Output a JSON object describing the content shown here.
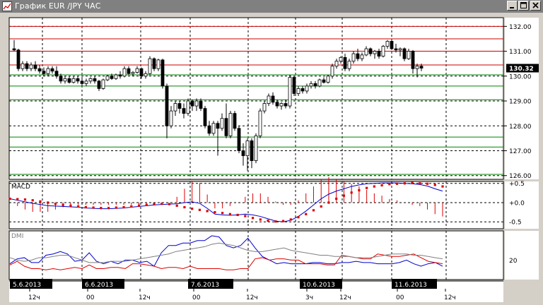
{
  "window": {
    "title": "График EUR /JPY ЧАС"
  },
  "colors": {
    "bg": "#ffffff",
    "up": "#ffffff",
    "down": "#000000",
    "res": "#cc0000",
    "sup": "#008000",
    "macd": "#0000cc",
    "signal": "#dd0000",
    "diplus": "#0000cc",
    "diminus": "#dd0000",
    "adx": "#808080"
  },
  "chart_data": [
    {
      "type": "candlestick",
      "title": "",
      "y_ticks": [
        "132.00",
        "131.00",
        "130.00",
        "129.00",
        "128.00",
        "127.00",
        "126.00"
      ],
      "ylim": [
        125.85,
        132.35
      ],
      "current_price": "130.32",
      "resistance_levels": [
        132.0,
        131.5,
        131.0,
        130.45
      ],
      "support_levels": [
        130.05,
        129.6,
        129.05,
        127.55,
        127.15,
        126.05
      ],
      "x_labels": [
        "5.6.2013",
        "12ч",
        "6.6.2013",
        "00",
        "12ч",
        "7.6.2013",
        "00",
        "12ч",
        "10.6.2013",
        "3ч",
        "12ч",
        "11.6.2013",
        "00",
        "12ч"
      ],
      "date_badges": [
        "5.6.2013",
        "6.6.2013",
        "7.6.2013",
        "10.6.2013",
        "11.6.2013"
      ],
      "candles": [
        [
          131.1,
          131.45,
          131.0,
          131.05
        ],
        [
          131.05,
          131.1,
          130.2,
          130.3
        ],
        [
          130.3,
          130.6,
          130.2,
          130.5
        ],
        [
          130.5,
          130.6,
          130.2,
          130.3
        ],
        [
          130.3,
          130.55,
          130.2,
          130.45
        ],
        [
          130.45,
          130.6,
          130.2,
          130.3
        ],
        [
          130.3,
          130.45,
          130.1,
          130.2
        ],
        [
          130.2,
          130.35,
          130.0,
          130.1
        ],
        [
          130.1,
          130.4,
          130.0,
          130.3
        ],
        [
          130.3,
          130.4,
          130.1,
          130.2
        ],
        [
          130.2,
          130.4,
          129.9,
          130.0
        ],
        [
          130.0,
          130.1,
          129.7,
          129.8
        ],
        [
          129.8,
          130.0,
          129.7,
          129.9
        ],
        [
          129.9,
          130.0,
          129.7,
          129.75
        ],
        [
          129.75,
          130.0,
          129.7,
          129.9
        ],
        [
          129.9,
          130.0,
          129.7,
          129.8
        ],
        [
          129.8,
          129.9,
          129.6,
          129.7
        ],
        [
          129.7,
          129.9,
          129.6,
          129.8
        ],
        [
          129.8,
          129.95,
          129.7,
          129.9
        ],
        [
          129.9,
          130.0,
          129.7,
          129.8
        ],
        [
          129.8,
          129.85,
          129.4,
          129.5
        ],
        [
          129.5,
          129.9,
          129.45,
          129.85
        ],
        [
          129.85,
          130.05,
          129.8,
          130.0
        ],
        [
          130.0,
          130.1,
          129.85,
          129.9
        ],
        [
          129.9,
          130.1,
          129.85,
          130.05
        ],
        [
          130.05,
          130.2,
          129.9,
          130.0
        ],
        [
          130.0,
          130.4,
          129.95,
          130.3
        ],
        [
          130.3,
          130.4,
          130.05,
          130.1
        ],
        [
          130.1,
          130.2,
          130.0,
          130.15
        ],
        [
          130.15,
          130.4,
          130.1,
          130.3
        ],
        [
          130.3,
          130.35,
          129.9,
          130.0
        ],
        [
          130.0,
          130.2,
          129.9,
          130.1
        ],
        [
          130.1,
          130.8,
          130.05,
          130.7
        ],
        [
          130.7,
          130.75,
          130.2,
          130.3
        ],
        [
          130.3,
          130.7,
          130.2,
          130.65
        ],
        [
          130.65,
          130.7,
          129.5,
          129.6
        ],
        [
          129.6,
          129.7,
          127.5,
          128.0
        ],
        [
          128.0,
          128.8,
          127.9,
          128.6
        ],
        [
          128.6,
          129.0,
          128.4,
          128.9
        ],
        [
          128.9,
          129.0,
          128.5,
          128.7
        ],
        [
          128.7,
          128.9,
          128.3,
          128.5
        ],
        [
          128.5,
          129.1,
          128.4,
          129.0
        ],
        [
          129.0,
          129.05,
          128.6,
          128.8
        ],
        [
          128.8,
          129.1,
          128.6,
          129.0
        ],
        [
          129.0,
          129.1,
          128.6,
          128.7
        ],
        [
          128.7,
          128.8,
          127.9,
          128.0
        ],
        [
          128.0,
          128.2,
          127.6,
          127.7
        ],
        [
          127.7,
          128.2,
          127.6,
          128.1
        ],
        [
          128.1,
          128.2,
          126.8,
          127.9
        ],
        [
          127.9,
          128.5,
          127.8,
          128.3
        ],
        [
          128.3,
          128.9,
          127.5,
          127.6
        ],
        [
          127.6,
          128.6,
          127.5,
          128.5
        ],
        [
          128.5,
          128.6,
          127.8,
          127.9
        ],
        [
          127.9,
          128.0,
          126.9,
          127.0
        ],
        [
          127.0,
          127.3,
          126.4,
          126.8
        ],
        [
          126.8,
          127.5,
          126.2,
          127.4
        ],
        [
          127.4,
          127.5,
          126.3,
          126.6
        ],
        [
          126.6,
          127.7,
          126.5,
          127.6
        ],
        [
          127.6,
          128.7,
          127.5,
          128.6
        ],
        [
          128.6,
          129.0,
          128.5,
          128.9
        ],
        [
          128.9,
          129.3,
          128.8,
          129.2
        ],
        [
          129.2,
          129.35,
          128.85,
          128.95
        ],
        [
          128.95,
          129.05,
          128.7,
          128.8
        ],
        [
          128.8,
          128.95,
          128.65,
          128.9
        ],
        [
          128.9,
          129.05,
          128.7,
          128.8
        ],
        [
          128.8,
          130.05,
          128.7,
          129.95
        ],
        [
          129.95,
          130.0,
          129.2,
          129.3
        ],
        [
          129.3,
          129.6,
          129.2,
          129.5
        ],
        [
          129.5,
          129.6,
          129.3,
          129.4
        ],
        [
          129.4,
          129.7,
          129.3,
          129.6
        ],
        [
          129.6,
          129.8,
          129.5,
          129.7
        ],
        [
          129.7,
          129.8,
          129.5,
          129.6
        ],
        [
          129.6,
          129.9,
          129.55,
          129.85
        ],
        [
          129.85,
          129.95,
          129.7,
          129.75
        ],
        [
          129.75,
          130.05,
          129.7,
          130.0
        ],
        [
          130.0,
          130.5,
          129.9,
          130.4
        ],
        [
          130.4,
          130.7,
          130.3,
          130.6
        ],
        [
          130.6,
          130.8,
          130.5,
          130.75
        ],
        [
          130.75,
          130.9,
          130.2,
          130.3
        ],
        [
          130.3,
          130.7,
          130.2,
          130.6
        ],
        [
          130.6,
          131.0,
          130.5,
          130.9
        ],
        [
          130.9,
          131.1,
          130.6,
          130.7
        ],
        [
          130.7,
          130.95,
          130.6,
          130.85
        ],
        [
          130.85,
          131.2,
          130.8,
          131.1
        ],
        [
          131.1,
          131.15,
          130.8,
          130.9
        ],
        [
          130.9,
          131.05,
          130.7,
          131.0
        ],
        [
          131.0,
          131.1,
          130.7,
          130.8
        ],
        [
          130.8,
          131.25,
          130.75,
          131.2
        ],
        [
          131.2,
          131.45,
          131.1,
          131.4
        ],
        [
          131.4,
          131.45,
          131.05,
          131.1
        ],
        [
          131.1,
          131.3,
          130.95,
          131.05
        ],
        [
          131.05,
          131.15,
          130.8,
          131.1
        ],
        [
          131.1,
          131.15,
          130.6,
          130.7
        ],
        [
          130.7,
          131.1,
          130.65,
          131.0
        ],
        [
          131.0,
          131.05,
          130.1,
          130.3
        ],
        [
          130.3,
          130.5,
          129.95,
          130.4
        ],
        [
          130.4,
          130.5,
          130.2,
          130.32
        ]
      ]
    },
    {
      "type": "line",
      "title": "MACD",
      "y_ticks": [
        "+0.5",
        "+0.0",
        "-0.5"
      ],
      "ylim": [
        -0.68,
        0.55
      ],
      "series": [
        {
          "values": [
            0.1,
            0.06,
            0.02,
            -0.02,
            -0.05,
            -0.08,
            -0.09,
            -0.1,
            -0.11,
            -0.12,
            -0.14,
            -0.15,
            -0.16,
            -0.16,
            -0.15,
            -0.14,
            -0.12,
            -0.1,
            -0.08,
            -0.06,
            -0.05,
            -0.04,
            -0.03,
            0.0,
            0.02,
            -0.02,
            -0.15,
            -0.3,
            -0.32,
            -0.33,
            -0.32,
            -0.3,
            -0.32,
            -0.36,
            -0.42,
            -0.48,
            -0.5,
            -0.46,
            -0.36,
            -0.22,
            -0.06,
            0.1,
            0.22,
            0.3,
            0.36,
            0.42,
            0.46,
            0.49,
            0.5,
            0.51,
            0.51,
            0.51,
            0.5,
            0.49,
            0.47,
            0.43,
            0.36,
            0.3
          ]
        },
        {
          "values": [
            0.1,
            0.09,
            0.08,
            0.06,
            0.03,
            0.0,
            -0.03,
            -0.06,
            -0.08,
            -0.1,
            -0.12,
            -0.13,
            -0.14,
            -0.14,
            -0.13,
            -0.12,
            -0.1,
            -0.08,
            -0.06,
            -0.04,
            -0.03,
            -0.04,
            -0.08,
            -0.12,
            -0.16,
            -0.19,
            -0.22,
            -0.25,
            -0.27,
            -0.3,
            -0.32,
            -0.35,
            -0.4,
            -0.44,
            -0.47,
            -0.49,
            -0.48,
            -0.44,
            -0.38,
            -0.3,
            -0.2,
            -0.1,
            0.0,
            0.1,
            0.18,
            0.26,
            0.32,
            0.38,
            0.42,
            0.45,
            0.48,
            0.49,
            0.5,
            0.51,
            0.5,
            0.49,
            0.46,
            0.42
          ]
        }
      ]
    },
    {
      "type": "line",
      "title": "DMI",
      "y_ticks": [
        "20"
      ],
      "ylim": [
        4,
        44
      ],
      "series": [
        {
          "values": [
            17,
            21,
            22,
            18,
            18,
            24,
            25,
            27,
            25,
            19,
            20,
            26,
            19,
            17,
            19,
            17,
            20,
            20,
            18,
            19,
            15,
            26,
            32,
            32,
            34,
            34,
            36,
            36,
            40,
            39,
            32,
            30,
            32,
            38,
            30,
            23,
            20,
            17,
            18,
            17,
            17,
            17,
            18,
            18,
            17,
            17,
            18,
            18,
            19,
            18,
            18,
            17,
            17,
            17,
            18,
            20,
            17,
            15,
            17,
            18,
            15
          ]
        },
        {
          "values": [
            16,
            19,
            15,
            13,
            13,
            12,
            13,
            12,
            13,
            14,
            13,
            16,
            13,
            13,
            14,
            14,
            13,
            17,
            17,
            16,
            15,
            13,
            14,
            14,
            13,
            15,
            13,
            13,
            13,
            13,
            12,
            12,
            13,
            13,
            21,
            22,
            20,
            21,
            21,
            20,
            20,
            17,
            17,
            17,
            16,
            16,
            24,
            23,
            22,
            21,
            21,
            25,
            24,
            23,
            23,
            24,
            25,
            22,
            19,
            18,
            17
          ]
        },
        {
          "values": [
            22,
            20,
            19,
            20,
            22,
            22,
            23,
            24,
            24,
            22,
            20,
            18,
            18,
            18,
            19,
            19,
            19,
            20,
            21,
            22,
            23,
            24,
            25,
            27,
            28,
            29,
            30,
            31,
            33,
            34,
            33,
            32,
            30,
            28,
            27,
            27,
            28,
            29,
            30,
            28,
            27,
            26,
            25,
            24,
            24,
            23,
            23,
            23,
            22,
            22,
            22,
            23,
            24,
            25,
            25,
            25,
            24,
            24,
            23,
            22,
            21
          ]
        }
      ]
    }
  ]
}
